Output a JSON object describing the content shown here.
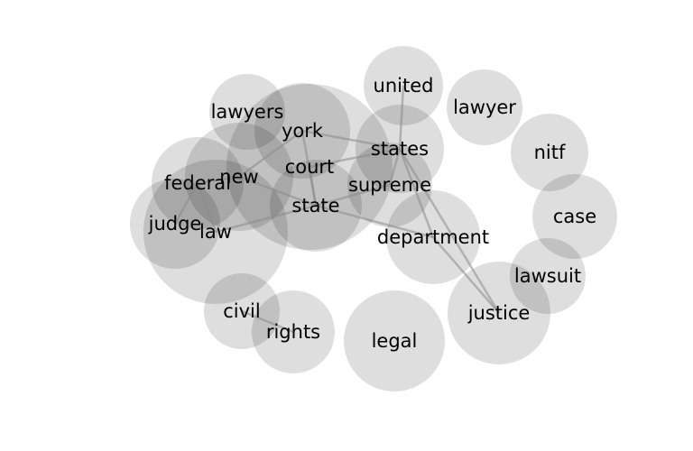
{
  "diagram": {
    "type": "word-cooccurrence-bubble-network",
    "words": [
      {
        "id": "united",
        "label": "united"
      },
      {
        "id": "lawyer",
        "label": "lawyer"
      },
      {
        "id": "lawyers",
        "label": "lawyers"
      },
      {
        "id": "york",
        "label": "york"
      },
      {
        "id": "states",
        "label": "states"
      },
      {
        "id": "nitf",
        "label": "nitf"
      },
      {
        "id": "court",
        "label": "court"
      },
      {
        "id": "new",
        "label": "new"
      },
      {
        "id": "federal",
        "label": "federal"
      },
      {
        "id": "supreme",
        "label": "supreme"
      },
      {
        "id": "state",
        "label": "state"
      },
      {
        "id": "case",
        "label": "case"
      },
      {
        "id": "judge",
        "label": "judge"
      },
      {
        "id": "law",
        "label": "law"
      },
      {
        "id": "department",
        "label": "department"
      },
      {
        "id": "lawsuit",
        "label": "lawsuit"
      },
      {
        "id": "civil",
        "label": "civil"
      },
      {
        "id": "justice",
        "label": "justice"
      },
      {
        "id": "rights",
        "label": "rights"
      },
      {
        "id": "legal",
        "label": "legal"
      }
    ],
    "links": [
      [
        "united",
        "states"
      ],
      [
        "york",
        "new"
      ],
      [
        "york",
        "states"
      ],
      [
        "york",
        "state"
      ],
      [
        "states",
        "court"
      ],
      [
        "states",
        "supreme"
      ],
      [
        "states",
        "department"
      ],
      [
        "states",
        "justice"
      ],
      [
        "new",
        "federal"
      ],
      [
        "new",
        "state"
      ],
      [
        "court",
        "state"
      ],
      [
        "supreme",
        "state"
      ],
      [
        "federal",
        "law"
      ],
      [
        "federal",
        "judge"
      ],
      [
        "state",
        "law"
      ],
      [
        "state",
        "department"
      ],
      [
        "department",
        "justice"
      ],
      [
        "civil",
        "rights"
      ]
    ],
    "colors": {
      "bubble": "#000000",
      "edge": "#8a8a8a",
      "text": "#000000"
    }
  }
}
